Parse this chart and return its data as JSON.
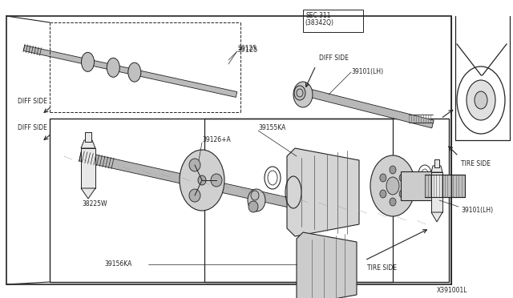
{
  "bg_color": "#ffffff",
  "line_color": "#222222",
  "gray_fill": "#cccccc",
  "light_gray": "#e8e8e8",
  "dark_gray": "#888888",
  "labels": {
    "SEC311_line1": "SEC.311",
    "SEC311_line2": "(38342Q)",
    "DIFF_SIDE_upper": "DIFF SIDE",
    "DIFF_SIDE_lower": "DIFF SIDE",
    "TIRE_SIDE_upper": "TIRE SIDE",
    "TIRE_SIDE_lower": "TIRE SIDE",
    "p39125": "39125",
    "p39126A": "39126+A",
    "p39155KA": "39155KA",
    "p39156KA": "39156KA",
    "p38225W": "38225W",
    "p39101LH_upper": "39101(LH)",
    "p39101LH_lower": "39101(LH)",
    "catalog": "X391001L"
  }
}
